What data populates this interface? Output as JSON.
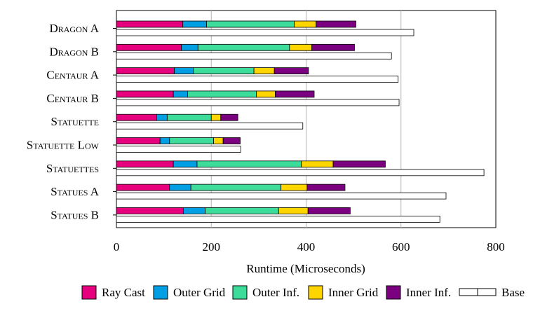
{
  "chart_data": {
    "type": "bar",
    "orientation": "horizontal",
    "categories": [
      "Dragon A",
      "Dragon B",
      "Centaur A",
      "Centaur B",
      "Statuette",
      "Statuette Low",
      "Statuettes",
      "Statues A",
      "Statues B"
    ],
    "stacked_series": [
      {
        "name": "Ray Cast",
        "color": "#e6007e",
        "values": [
          140,
          137,
          122,
          120,
          85,
          92,
          120,
          112,
          141
        ]
      },
      {
        "name": "Outer Grid",
        "color": "#009fe3",
        "values": [
          50,
          35,
          40,
          30,
          22,
          20,
          50,
          45,
          46
        ]
      },
      {
        "name": "Outer Inf.",
        "color": "#3ddc9b",
        "values": [
          185,
          193,
          128,
          145,
          93,
          93,
          220,
          190,
          155
        ]
      },
      {
        "name": "Inner Grid",
        "color": "#ffd500",
        "values": [
          46,
          47,
          43,
          40,
          20,
          20,
          67,
          55,
          62
        ]
      },
      {
        "name": "Inner Inf.",
        "color": "#7b0080",
        "values": [
          84,
          90,
          72,
          82,
          36,
          36,
          110,
          80,
          89
        ]
      }
    ],
    "base_series": {
      "name": "Base",
      "color": "#ffffff",
      "values": [
        627,
        580,
        594,
        596,
        393,
        262,
        775,
        695,
        682
      ]
    },
    "xlabel": "Runtime (Microseconds)",
    "ylabel": "",
    "xlim": [
      0,
      800
    ],
    "xticks": [
      "0",
      "200",
      "400",
      "600",
      "800"
    ],
    "grid": "vertical",
    "legend_position": "bottom"
  }
}
